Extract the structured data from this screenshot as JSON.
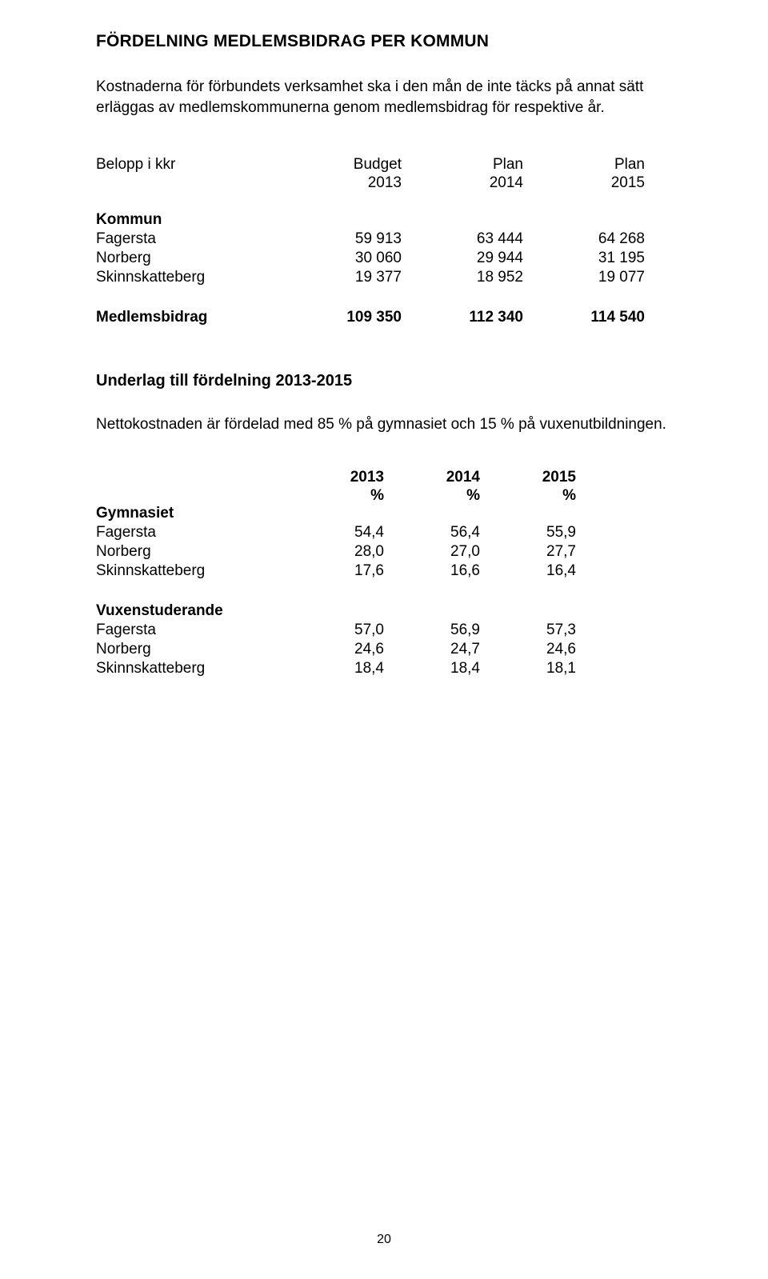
{
  "title": "FÖRDELNING MEDLEMSBIDRAG PER KOMMUN",
  "intro": "Kostnaderna för förbundets verksamhet ska i den mån de inte täcks på annat sätt erläggas av medlemskommunerna genom medlemsbidrag för respektive år.",
  "table1": {
    "head_label": "Belopp i kkr",
    "col_top": [
      "Budget",
      "Plan",
      "Plan"
    ],
    "col_years": [
      "2013",
      "2014",
      "2015"
    ],
    "section": "Kommun",
    "rows": [
      {
        "label": "Fagersta",
        "v": [
          "59 913",
          "63 444",
          "64 268"
        ]
      },
      {
        "label": "Norberg",
        "v": [
          "30 060",
          "29 944",
          "31 195"
        ]
      },
      {
        "label": "Skinnskatteberg",
        "v": [
          "19 377",
          "18 952",
          "19 077"
        ]
      }
    ],
    "totals": {
      "label": "Medlemsbidrag",
      "v": [
        "109 350",
        "112 340",
        "114 540"
      ]
    }
  },
  "subtitle": "Underlag till fördelning 2013-2015",
  "note": "Nettokostnaden är fördelad med 85 % på gymnasiet och 15 % på vuxenutbildningen.",
  "table2": {
    "col_years": [
      "2013",
      "2014",
      "2015"
    ],
    "col_pct": [
      "%",
      "%",
      "%"
    ],
    "sections": [
      {
        "label": "Gymnasiet",
        "rows": [
          {
            "label": "Fagersta",
            "v": [
              "54,4",
              "56,4",
              "55,9"
            ]
          },
          {
            "label": "Norberg",
            "v": [
              "28,0",
              "27,0",
              "27,7"
            ]
          },
          {
            "label": "Skinnskatteberg",
            "v": [
              "17,6",
              "16,6",
              "16,4"
            ]
          }
        ]
      },
      {
        "label": "Vuxenstuderande",
        "rows": [
          {
            "label": "Fagersta",
            "v": [
              "57,0",
              "56,9",
              "57,3"
            ]
          },
          {
            "label": "Norberg",
            "v": [
              "24,6",
              "24,7",
              "24,6"
            ]
          },
          {
            "label": "Skinnskatteberg",
            "v": [
              "18,4",
              "18,4",
              "18,1"
            ]
          }
        ]
      }
    ]
  },
  "page_number": "20"
}
